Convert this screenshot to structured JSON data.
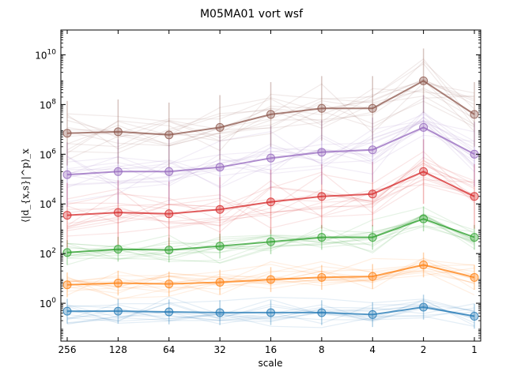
{
  "chart_data": {
    "type": "line",
    "title": "M05MA01 vort wsf",
    "xlabel": "scale",
    "ylabel": "⟨|d_{x,s}|^p⟩_x",
    "y_scale": "log",
    "ylim": [
      0.03,
      100000000000
    ],
    "x_direction": "reversed",
    "categories": [
      "256",
      "128",
      "64",
      "32",
      "16",
      "8",
      "4",
      "2",
      "1"
    ],
    "y_ticks": [
      {
        "base": "10",
        "exp": "0"
      },
      {
        "base": "10",
        "exp": "2"
      },
      {
        "base": "10",
        "exp": "4"
      },
      {
        "base": "10",
        "exp": "6"
      },
      {
        "base": "10",
        "exp": "8"
      },
      {
        "base": "10",
        "exp": "10"
      }
    ],
    "grid": false,
    "series": [
      {
        "color": "#1f77b4",
        "values": [
          0.48,
          0.48,
          0.45,
          0.42,
          0.42,
          0.42,
          0.35,
          0.7,
          0.3
        ]
      },
      {
        "color": "#ff7f0e",
        "values": [
          5.5,
          6.5,
          6.0,
          7.0,
          9.0,
          11.0,
          12.0,
          35.0,
          11.0
        ]
      },
      {
        "color": "#2ca02c",
        "values": [
          110,
          150,
          140,
          200,
          300,
          450,
          450,
          2500,
          450
        ]
      },
      {
        "color": "#d62728",
        "values": [
          3500,
          4500,
          4000,
          6000,
          12000,
          20000,
          25000,
          200000,
          20000
        ]
      },
      {
        "color": "#9467bd",
        "values": [
          150000,
          200000,
          200000,
          300000,
          700000,
          1200000,
          1500000,
          12000000,
          1000000
        ]
      },
      {
        "color": "#8c564b",
        "values": [
          7000000,
          8000000,
          6000000,
          12000000,
          40000000,
          70000000,
          70000000,
          900000000,
          40000000
        ]
      }
    ]
  }
}
